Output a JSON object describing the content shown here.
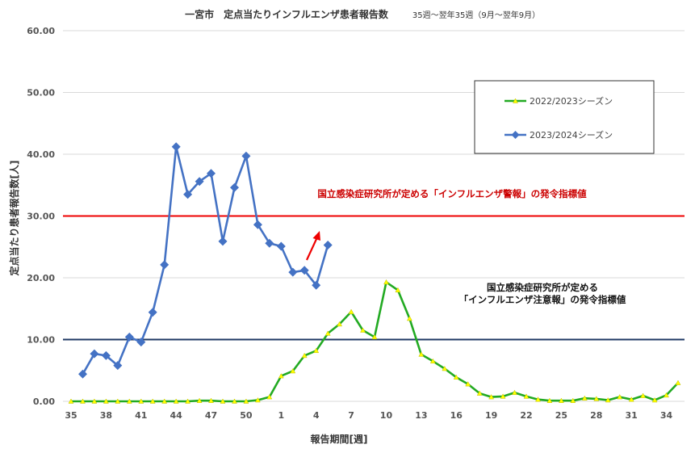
{
  "chart_data": {
    "type": "line",
    "title": "一宮市　定点当たりインフルエンザ患者報告数",
    "subtitle": "35週～翌年35週（9月～翌年9月）",
    "xlabel": "報告期間[週]",
    "ylabel": "定点当たり患者報告数[人]",
    "ylim": [
      0,
      60
    ],
    "yticks": [
      "0.00",
      "10.00",
      "20.00",
      "30.00",
      "40.00",
      "50.00",
      "60.00"
    ],
    "grid": true,
    "legend_position": "top-right",
    "weeks": [
      35,
      36,
      37,
      38,
      39,
      40,
      41,
      42,
      43,
      44,
      45,
      46,
      47,
      48,
      49,
      50,
      51,
      52,
      1,
      2,
      3,
      4,
      5,
      6,
      7,
      8,
      9,
      10,
      11,
      12,
      13,
      14,
      15,
      16,
      17,
      18,
      19,
      20,
      21,
      22,
      23,
      24,
      25,
      26,
      27,
      28,
      29,
      30,
      31,
      32,
      33,
      34,
      35
    ],
    "xtick_labels": [
      "35",
      "38",
      "41",
      "44",
      "47",
      "50",
      "1",
      "4",
      "7",
      "10",
      "13",
      "16",
      "19",
      "22",
      "25",
      "28",
      "31",
      "34"
    ],
    "series": [
      {
        "name": "2022/2023シーズン",
        "color": "#22aa22",
        "values": [
          0.0,
          0.0,
          0.0,
          0.0,
          0.0,
          0.0,
          0.0,
          0.0,
          0.0,
          0.0,
          0.0,
          0.1,
          0.1,
          0.0,
          0.0,
          0.0,
          0.2,
          0.7,
          4.1,
          4.9,
          7.4,
          8.2,
          11.0,
          12.5,
          14.5,
          11.5,
          10.4,
          19.3,
          18.0,
          13.4,
          7.6,
          6.5,
          5.3,
          3.9,
          2.8,
          1.3,
          0.7,
          0.8,
          1.4,
          0.8,
          0.3,
          0.1,
          0.1,
          0.1,
          0.5,
          0.4,
          0.2,
          0.7,
          0.3,
          0.9,
          0.2,
          1.0,
          3.0
        ]
      },
      {
        "name": "2023/2024シーズン",
        "color": "#4472c4",
        "values": [
          null,
          4.4,
          7.7,
          7.4,
          5.8,
          10.4,
          9.6,
          14.4,
          22.1,
          41.2,
          33.5,
          35.6,
          36.9,
          25.9,
          34.6,
          39.7,
          28.6,
          25.6,
          25.1,
          20.9,
          21.2,
          18.8,
          25.3
        ]
      }
    ],
    "reference_lines": [
      {
        "value": 30,
        "color": "#ee0000",
        "label": "国立感染症研究所が定める「インフルエンザ警報」の発令指標値",
        "label_color": "#cc0000"
      },
      {
        "value": 10,
        "color": "#1f3864",
        "label_lines": [
          "国立感染症研究所が定める",
          "「インフルエンザ注意報」の発令指標値"
        ],
        "label_color": "#111111"
      }
    ],
    "arrow_annotation": {
      "color": "#ee0000",
      "direction": "up"
    }
  }
}
